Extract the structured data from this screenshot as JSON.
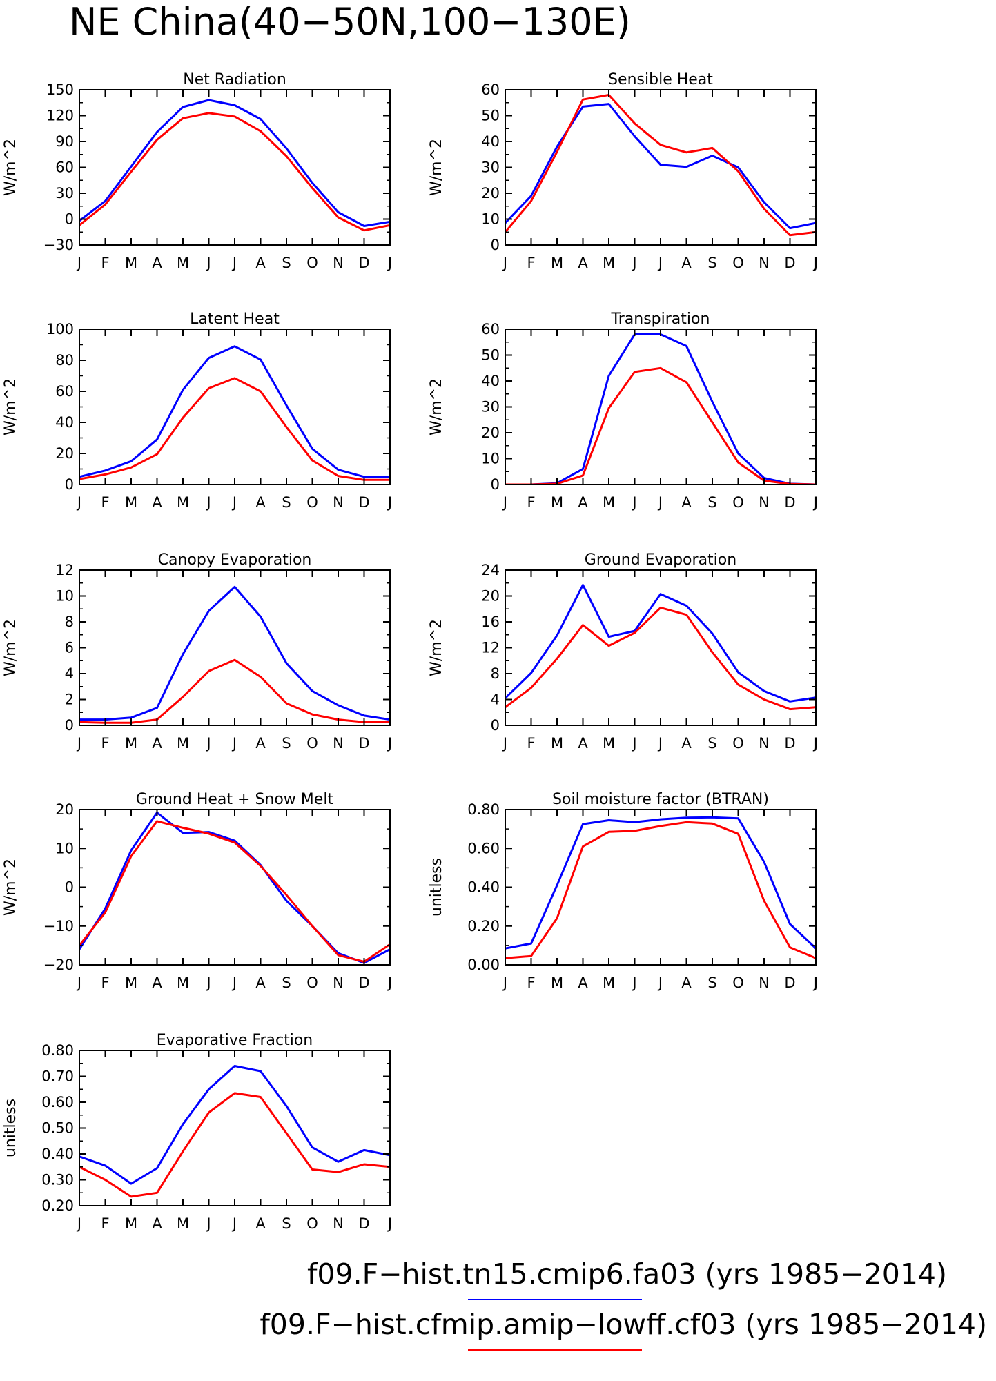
{
  "figure": {
    "title": "NE China(40−50N,100−130E)"
  },
  "colors": {
    "series1": "#0000ff",
    "series2": "#ff0000",
    "axis": "#000000"
  },
  "legend": [
    {
      "label": "f09.F−hist.tn15.cmip6.fa03 (yrs 1985−2014)",
      "color": "#0000ff"
    },
    {
      "label": "f09.F−hist.cfmip.amip−lowff.cf03 (yrs 1985−2014)",
      "color": "#ff0000"
    }
  ],
  "chart_data": [
    {
      "type": "line",
      "title": "Net Radiation",
      "ylabel": "W/m^2",
      "ylim": [
        -30,
        150
      ],
      "yticks": [
        "−30",
        "0",
        "30",
        "60",
        "90",
        "120",
        "150"
      ],
      "categories": [
        "J",
        "F",
        "M",
        "A",
        "M",
        "J",
        "J",
        "A",
        "S",
        "O",
        "N",
        "D",
        "J"
      ],
      "series": [
        {
          "values": [
            -2,
            21,
            61,
            101,
            130,
            138,
            132,
            116,
            82,
            42,
            8,
            -8,
            -3
          ]
        },
        {
          "values": [
            -7,
            17,
            55,
            92,
            117,
            123,
            119,
            102,
            73,
            36,
            2,
            -13,
            -7
          ]
        }
      ]
    },
    {
      "type": "line",
      "title": "Sensible Heat",
      "ylabel": "W/m^2",
      "ylim": [
        0,
        60
      ],
      "yticks": [
        "0",
        "10",
        "20",
        "30",
        "40",
        "50",
        "60"
      ],
      "categories": [
        "J",
        "F",
        "M",
        "A",
        "M",
        "J",
        "J",
        "A",
        "S",
        "O",
        "N",
        "D",
        "J"
      ],
      "series": [
        {
          "values": [
            8.5,
            19,
            38,
            53.5,
            54.5,
            42,
            31,
            30.2,
            34.5,
            30,
            16.5,
            6.5,
            8.5
          ]
        },
        {
          "values": [
            5,
            17,
            36,
            56.2,
            58,
            47,
            38.7,
            35.8,
            37.5,
            28.5,
            14,
            3.8,
            5
          ]
        }
      ]
    },
    {
      "type": "line",
      "title": "Latent Heat",
      "ylabel": "W/m^2",
      "ylim": [
        0,
        100
      ],
      "yticks": [
        "0",
        "20",
        "40",
        "60",
        "80",
        "100"
      ],
      "categories": [
        "J",
        "F",
        "M",
        "A",
        "M",
        "J",
        "J",
        "A",
        "S",
        "O",
        "N",
        "D",
        "J"
      ],
      "series": [
        {
          "values": [
            5,
            9,
            15,
            29,
            61,
            81.5,
            89,
            80.5,
            51,
            23,
            9.5,
            5,
            5
          ]
        },
        {
          "values": [
            3.5,
            6.5,
            11,
            19.5,
            43,
            62,
            68.5,
            60,
            37,
            15.5,
            5.5,
            3,
            3
          ]
        }
      ]
    },
    {
      "type": "line",
      "title": "Transpiration",
      "ylabel": "W/m^2",
      "ylim": [
        0,
        60
      ],
      "yticks": [
        "0",
        "10",
        "20",
        "30",
        "40",
        "50",
        "60"
      ],
      "categories": [
        "J",
        "F",
        "M",
        "A",
        "M",
        "J",
        "J",
        "A",
        "S",
        "O",
        "N",
        "D",
        "J"
      ],
      "series": [
        {
          "values": [
            0,
            0,
            0.5,
            6,
            42,
            58,
            58,
            53.5,
            32,
            12,
            2.5,
            0.3,
            0
          ]
        },
        {
          "values": [
            0,
            0,
            0.3,
            3.5,
            29.5,
            43.5,
            45,
            39.5,
            24,
            8.5,
            1.5,
            0.2,
            0
          ]
        }
      ]
    },
    {
      "type": "line",
      "title": "Canopy Evaporation",
      "ylabel": "W/m^2",
      "ylim": [
        0,
        12
      ],
      "yticks": [
        "0",
        "2",
        "4",
        "6",
        "8",
        "10",
        "12"
      ],
      "categories": [
        "J",
        "F",
        "M",
        "A",
        "M",
        "J",
        "J",
        "A",
        "S",
        "O",
        "N",
        "D",
        "J"
      ],
      "series": [
        {
          "values": [
            0.45,
            0.45,
            0.6,
            1.35,
            5.5,
            8.85,
            10.7,
            8.4,
            4.8,
            2.65,
            1.55,
            0.75,
            0.45
          ]
        },
        {
          "values": [
            0.25,
            0.2,
            0.2,
            0.45,
            2.2,
            4.2,
            5.05,
            3.75,
            1.7,
            0.85,
            0.45,
            0.25,
            0.25
          ]
        }
      ]
    },
    {
      "type": "line",
      "title": "Ground Evaporation",
      "ylabel": "W/m^2",
      "ylim": [
        0,
        24
      ],
      "yticks": [
        "0",
        "4",
        "8",
        "12",
        "16",
        "20",
        "24"
      ],
      "categories": [
        "J",
        "F",
        "M",
        "A",
        "M",
        "J",
        "J",
        "A",
        "S",
        "O",
        "N",
        "D",
        "J"
      ],
      "series": [
        {
          "values": [
            4.2,
            8.1,
            13.9,
            21.7,
            13.7,
            14.6,
            20.3,
            18.5,
            14.2,
            8.2,
            5.3,
            3.7,
            4.3
          ]
        },
        {
          "values": [
            2.8,
            5.8,
            10.3,
            15.5,
            12.3,
            14.3,
            18.2,
            17.1,
            11.3,
            6.3,
            4,
            2.5,
            2.8
          ]
        }
      ]
    },
    {
      "type": "line",
      "title": "Ground Heat + Snow Melt",
      "ylabel": "W/m^2",
      "ylim": [
        -20,
        20
      ],
      "yticks": [
        "−20",
        "−10",
        "0",
        "10",
        "20"
      ],
      "categories": [
        "J",
        "F",
        "M",
        "A",
        "M",
        "J",
        "J",
        "A",
        "S",
        "O",
        "N",
        "D",
        "J"
      ],
      "series": [
        {
          "values": [
            -16,
            -5.5,
            9.5,
            19.2,
            14,
            14.2,
            12,
            5.7,
            -3.5,
            -10,
            -17,
            -19.5,
            -16
          ]
        },
        {
          "values": [
            -15,
            -6.5,
            8,
            17,
            15.3,
            13.8,
            11.5,
            5.5,
            -2,
            -10,
            -17.5,
            -19.2,
            -14.7
          ]
        }
      ]
    },
    {
      "type": "line",
      "title": "Soil moisture factor (BTRAN)",
      "ylabel": "unitless",
      "ylim": [
        0,
        0.8
      ],
      "yticks": [
        "0.00",
        "0.20",
        "0.40",
        "0.60",
        "0.80"
      ],
      "categories": [
        "J",
        "F",
        "M",
        "A",
        "M",
        "J",
        "J",
        "A",
        "S",
        "O",
        "N",
        "D",
        "J"
      ],
      "series": [
        {
          "values": [
            0.085,
            0.11,
            0.41,
            0.725,
            0.745,
            0.735,
            0.75,
            0.758,
            0.76,
            0.755,
            0.53,
            0.21,
            0.085
          ]
        },
        {
          "values": [
            0.035,
            0.045,
            0.24,
            0.61,
            0.685,
            0.69,
            0.715,
            0.735,
            0.728,
            0.675,
            0.33,
            0.09,
            0.035
          ]
        }
      ]
    },
    {
      "type": "line",
      "title": "Evaporative Fraction",
      "ylabel": "unitless",
      "ylim": [
        0.2,
        0.8
      ],
      "yticks": [
        "0.20",
        "0.30",
        "0.40",
        "0.50",
        "0.60",
        "0.70",
        "0.80"
      ],
      "categories": [
        "J",
        "F",
        "M",
        "A",
        "M",
        "J",
        "J",
        "A",
        "S",
        "O",
        "N",
        "D",
        "J"
      ],
      "series": [
        {
          "values": [
            0.39,
            0.355,
            0.285,
            0.345,
            0.515,
            0.65,
            0.74,
            0.72,
            0.585,
            0.425,
            0.37,
            0.415,
            0.395
          ]
        },
        {
          "values": [
            0.35,
            0.3,
            0.235,
            0.25,
            0.41,
            0.56,
            0.635,
            0.62,
            0.48,
            0.34,
            0.33,
            0.36,
            0.35
          ]
        }
      ]
    }
  ]
}
